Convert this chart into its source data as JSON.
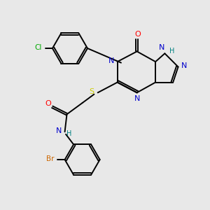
{
  "bg_color": "#e8e8e8",
  "atom_colors": {
    "N": "#0000cc",
    "O": "#ff0000",
    "S": "#cccc00",
    "Cl": "#00aa00",
    "Br": "#cc6600",
    "H": "#008080",
    "C": "#000000"
  }
}
